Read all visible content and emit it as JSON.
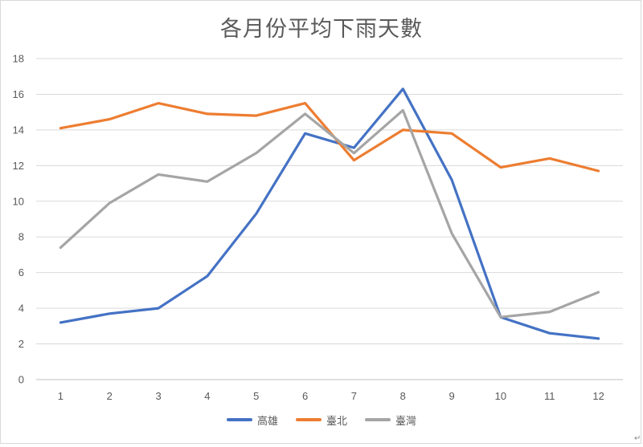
{
  "chart_data": {
    "type": "line",
    "title": "各月份平均下雨天數",
    "categories": [
      "1",
      "2",
      "3",
      "4",
      "5",
      "6",
      "7",
      "8",
      "9",
      "10",
      "11",
      "12"
    ],
    "series": [
      {
        "name": "高雄",
        "color": "#4472c4",
        "values": [
          3.2,
          3.7,
          4.0,
          5.8,
          9.3,
          13.8,
          13.0,
          16.3,
          11.2,
          3.5,
          2.6,
          2.3
        ]
      },
      {
        "name": "臺北",
        "color": "#ed7d31",
        "values": [
          14.1,
          14.6,
          15.5,
          14.9,
          14.8,
          15.5,
          12.3,
          14.0,
          13.8,
          11.9,
          12.4,
          11.7
        ]
      },
      {
        "name": "臺灣",
        "color": "#a5a5a5",
        "values": [
          7.4,
          9.9,
          11.5,
          11.1,
          12.7,
          14.9,
          12.7,
          15.1,
          8.2,
          3.5,
          3.8,
          4.9
        ]
      }
    ],
    "ylim": [
      0,
      18
    ],
    "yticks": [
      "0",
      "2",
      "4",
      "6",
      "8",
      "10",
      "12",
      "14",
      "16",
      "18"
    ],
    "grid": true,
    "legend_position": "bottom"
  },
  "corner_mark": "↵"
}
